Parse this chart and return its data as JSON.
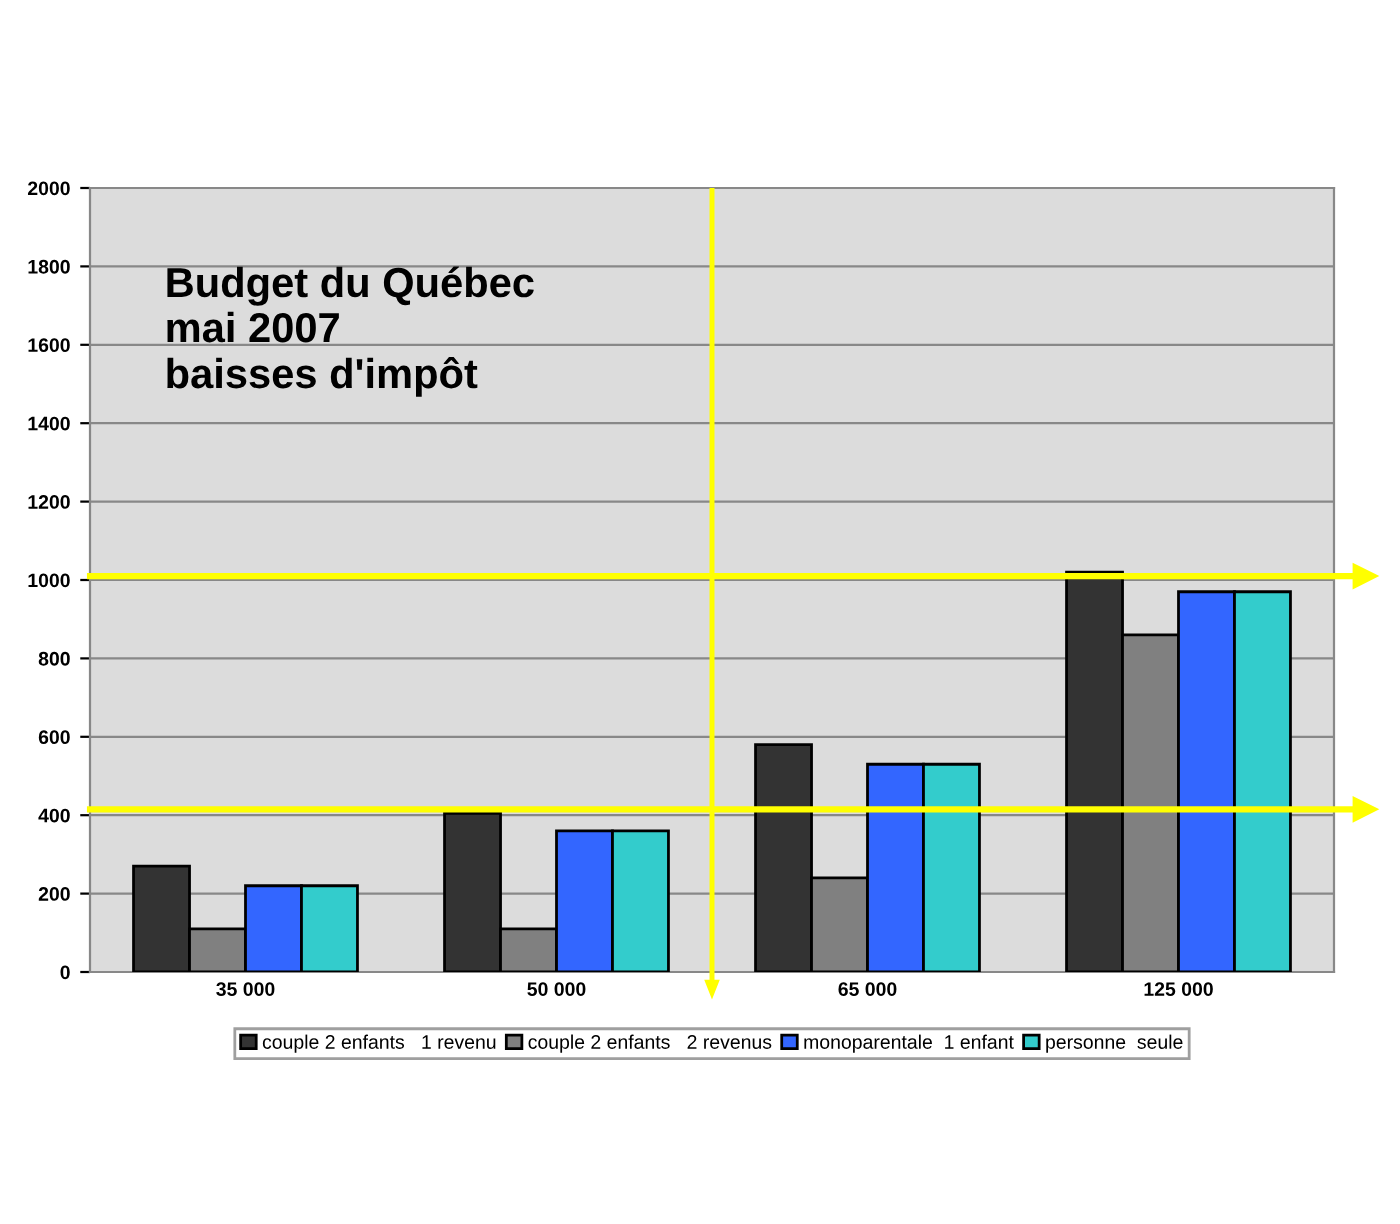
{
  "chart_data": {
    "type": "bar",
    "title": "Budget du Québec\nmai 2007\nbaisses d'impôt",
    "categories": [
      "35 000",
      "50 000",
      "65 000",
      "125 000"
    ],
    "series": [
      {
        "name": "couple 2 enfants   1 revenu",
        "color": "#333333",
        "values": [
          270,
          405,
          580,
          1020
        ]
      },
      {
        "name": "couple 2 enfants   2 revenus",
        "color": "#808080",
        "values": [
          110,
          110,
          240,
          860
        ]
      },
      {
        "name": "monoparentale  1 enfant",
        "color": "#3366ff",
        "values": [
          220,
          360,
          530,
          970
        ]
      },
      {
        "name": "personne  seule",
        "color": "#33cccc",
        "values": [
          220,
          360,
          530,
          970
        ]
      }
    ],
    "ylim": [
      0,
      2000
    ],
    "yticks": [
      0,
      200,
      400,
      600,
      800,
      1000,
      1200,
      1400,
      1600,
      1800,
      2000
    ],
    "grid": "y",
    "legend": "bottom",
    "ref_lines": [
      {
        "axis": "y",
        "value": 1010,
        "color": "#ffff00"
      },
      {
        "axis": "y",
        "value": 415,
        "color": "#ffff00"
      }
    ]
  }
}
